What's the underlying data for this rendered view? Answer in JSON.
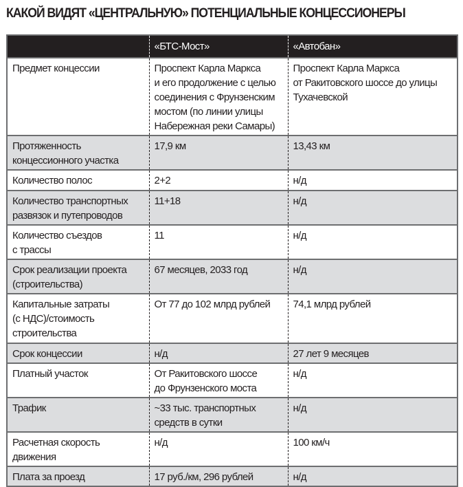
{
  "title": "КАКОЙ ВИДЯТ «ЦЕНТРАЛЬНУЮ» ПОТЕНЦИАЛЬНЫЕ КОНЦЕССИОНЕРЫ",
  "columns": [
    "",
    "«БТС-Мост»",
    "«Автобан»"
  ],
  "rows": [
    {
      "label": "Предмет концессии",
      "bts": "Проспект Карла Маркса\nи его продолжение с целью\nсоединения с Фрунзенским\nмостом (по линии улицы\nНабережная реки Самары)",
      "avtoban": "Проспект Карла Маркса\nот Ракитовского шоссе до улицы\nТухачевской"
    },
    {
      "label": "Протяженность\nконцессионного участка",
      "bts": "17,9 км",
      "avtoban": "13,43 км"
    },
    {
      "label": "Количество полос",
      "bts": "2+2",
      "avtoban": "н/д"
    },
    {
      "label": "Количество транспортных\nразвязок и путепроводов",
      "bts": "11+18",
      "avtoban": "н/д"
    },
    {
      "label": "Количество съездов\nс трассы",
      "bts": "11",
      "avtoban": "н/д"
    },
    {
      "label": "Срок реализации проекта\n(строительства)",
      "bts": "67 месяцев, 2033 год",
      "avtoban": "н/д"
    },
    {
      "label": "Капитальные затраты\n(с НДС)/стоимость\nстроительства",
      "bts": "От 77 до 102 млрд рублей",
      "avtoban": "74,1 млрд рублей"
    },
    {
      "label": "Срок концессии",
      "bts": "н/д",
      "avtoban": "27 лет 9 месяцев"
    },
    {
      "label": "Платный участок",
      "bts": "От Ракитовского шоссе\nдо Фрунзенского моста",
      "avtoban": "н/д"
    },
    {
      "label": "Трафик",
      "bts": "~33 тыс. транспортных\nсредств в сутки",
      "avtoban": "н/д"
    },
    {
      "label": "Расчетная скорость\nдвижения",
      "bts": "н/д",
      "avtoban": "100 км/ч"
    },
    {
      "label": "Плата за проезд",
      "bts": "17 руб./км, 296 рублей",
      "avtoban": "н/д"
    }
  ]
}
